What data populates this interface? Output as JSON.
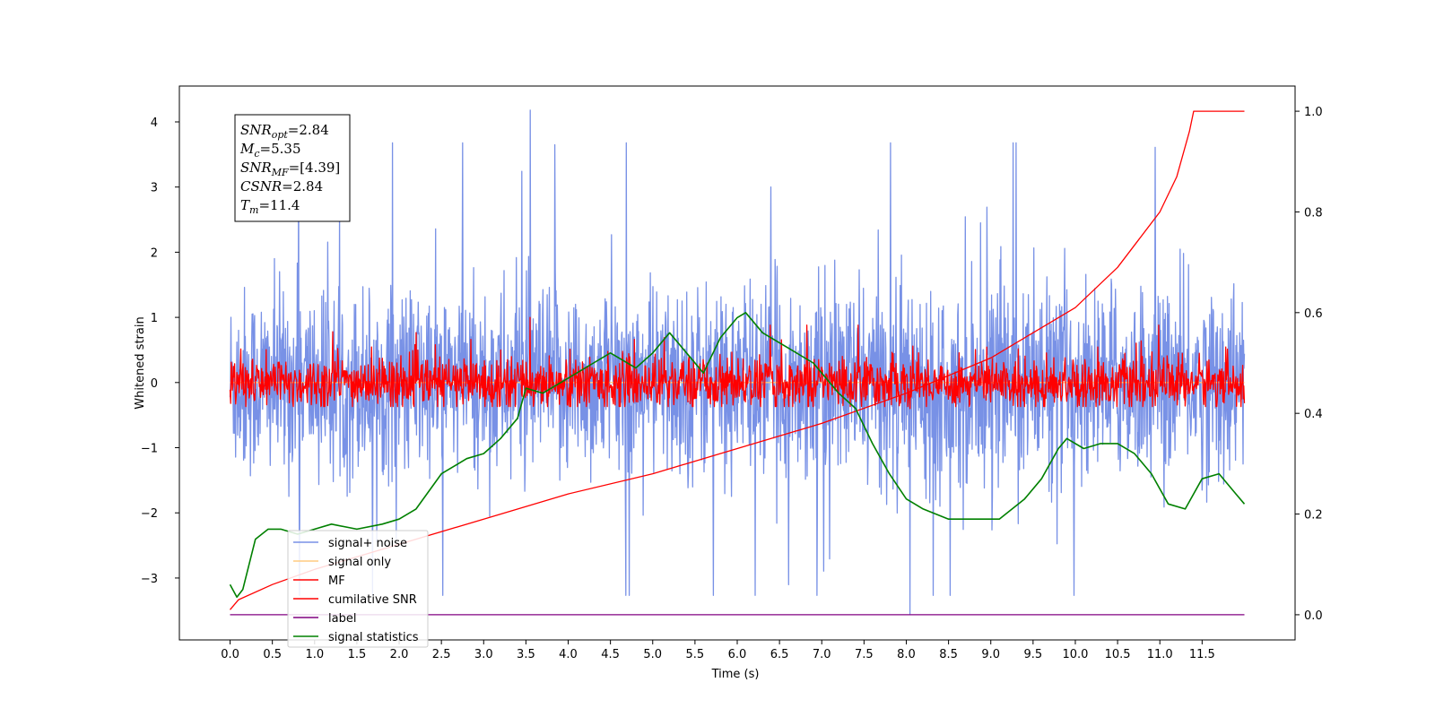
{
  "chart_data": {
    "type": "line",
    "title": "",
    "xlabel": "Time (s)",
    "ylabel": "Whitened strain",
    "y2label": "",
    "xlim": [
      -0.6,
      12.6
    ],
    "ylim": [
      -3.95,
      4.55
    ],
    "y2lim": [
      -0.05,
      1.05
    ],
    "x_tick_labels": [
      "0.0",
      "0.5",
      "1.0",
      "1.5",
      "2.0",
      "2.5",
      "3.0",
      "3.5",
      "4.0",
      "4.5",
      "5.0",
      "5.5",
      "6.0",
      "6.5",
      "7.0",
      "7.5",
      "8.0",
      "8.5",
      "9.0",
      "9.5",
      "10.0",
      "10.5",
      "11.0",
      "11.5"
    ],
    "y_tick_labels": [
      "4",
      "3",
      "2",
      "1",
      "0",
      "−1",
      "−2",
      "−3"
    ],
    "y2_tick_labels": [
      "1.0",
      "0.8",
      "0.6",
      "0.4",
      "0.2",
      "0.0"
    ],
    "legend_position": "lower-left",
    "grid": false,
    "annotation": {
      "lines": [
        {
          "var": "SNR",
          "sub": "opt",
          "value": "=2.84"
        },
        {
          "var": "M",
          "sub": "c",
          "value": "=5.35"
        },
        {
          "var": "SNR",
          "sub": "MF",
          "value": "=[4.39]"
        },
        {
          "var": "CSNR",
          "sub": "",
          "value": "=2.84"
        },
        {
          "var": "T",
          "sub": "m",
          "value": "=11.4"
        }
      ]
    },
    "series": [
      {
        "name": "signal+ noise",
        "axis": "left",
        "color": "#7891e6",
        "x_range": [
          0.0,
          12.0
        ],
        "center": 0.0,
        "typical_range": [
          -1.9,
          1.9
        ],
        "extrema": {
          "max": 4.18,
          "min": -3.55
        }
      },
      {
        "name": "signal only",
        "axis": "left",
        "color": "#ffcc80",
        "x": [
          0.0,
          12.0
        ],
        "y": [
          0.0,
          0.0
        ]
      },
      {
        "name": "MF",
        "axis": "left",
        "color": "#ff0000",
        "x_range": [
          0.0,
          12.0
        ],
        "center": 0.0,
        "typical_range": [
          -0.35,
          0.6
        ],
        "extrema": {
          "max": 1.0,
          "min": -0.4
        }
      },
      {
        "name": "cumilative SNR",
        "axis": "right",
        "color": "#ff0000",
        "x": [
          0.0,
          0.1,
          0.5,
          1.0,
          2.0,
          3.0,
          4.0,
          5.0,
          6.0,
          7.0,
          8.0,
          9.0,
          9.5,
          10.0,
          10.5,
          11.0,
          11.2,
          11.35,
          11.4,
          11.5,
          12.0
        ],
        "y": [
          0.01,
          0.03,
          0.06,
          0.09,
          0.14,
          0.19,
          0.24,
          0.28,
          0.33,
          0.38,
          0.44,
          0.51,
          0.56,
          0.61,
          0.69,
          0.8,
          0.87,
          0.96,
          1.0,
          1.0,
          1.0
        ]
      },
      {
        "name": "label",
        "axis": "right",
        "color": "#800080",
        "x": [
          0.0,
          12.0
        ],
        "y": [
          0.0,
          0.0
        ]
      },
      {
        "name": "signal statistics",
        "axis": "right",
        "color": "#008000",
        "x": [
          0.0,
          0.08,
          0.15,
          0.3,
          0.45,
          0.6,
          0.8,
          1.0,
          1.2,
          1.5,
          1.8,
          2.0,
          2.2,
          2.5,
          2.8,
          3.0,
          3.2,
          3.4,
          3.5,
          3.7,
          4.0,
          4.3,
          4.5,
          4.8,
          5.0,
          5.2,
          5.4,
          5.6,
          5.8,
          6.0,
          6.1,
          6.3,
          6.6,
          6.9,
          7.2,
          7.4,
          7.6,
          7.8,
          8.0,
          8.2,
          8.5,
          8.8,
          9.1,
          9.4,
          9.6,
          9.8,
          9.9,
          10.1,
          10.3,
          10.5,
          10.7,
          10.9,
          11.1,
          11.3,
          11.5,
          11.7,
          11.9,
          12.0
        ],
        "y": [
          0.06,
          0.035,
          0.05,
          0.15,
          0.17,
          0.17,
          0.16,
          0.17,
          0.18,
          0.17,
          0.18,
          0.19,
          0.21,
          0.28,
          0.31,
          0.32,
          0.35,
          0.39,
          0.45,
          0.44,
          0.47,
          0.5,
          0.52,
          0.49,
          0.52,
          0.56,
          0.52,
          0.48,
          0.55,
          0.59,
          0.6,
          0.56,
          0.53,
          0.5,
          0.44,
          0.41,
          0.34,
          0.28,
          0.23,
          0.21,
          0.19,
          0.19,
          0.19,
          0.23,
          0.27,
          0.33,
          0.35,
          0.33,
          0.34,
          0.34,
          0.32,
          0.28,
          0.22,
          0.21,
          0.27,
          0.28,
          0.24,
          0.22
        ]
      }
    ]
  }
}
